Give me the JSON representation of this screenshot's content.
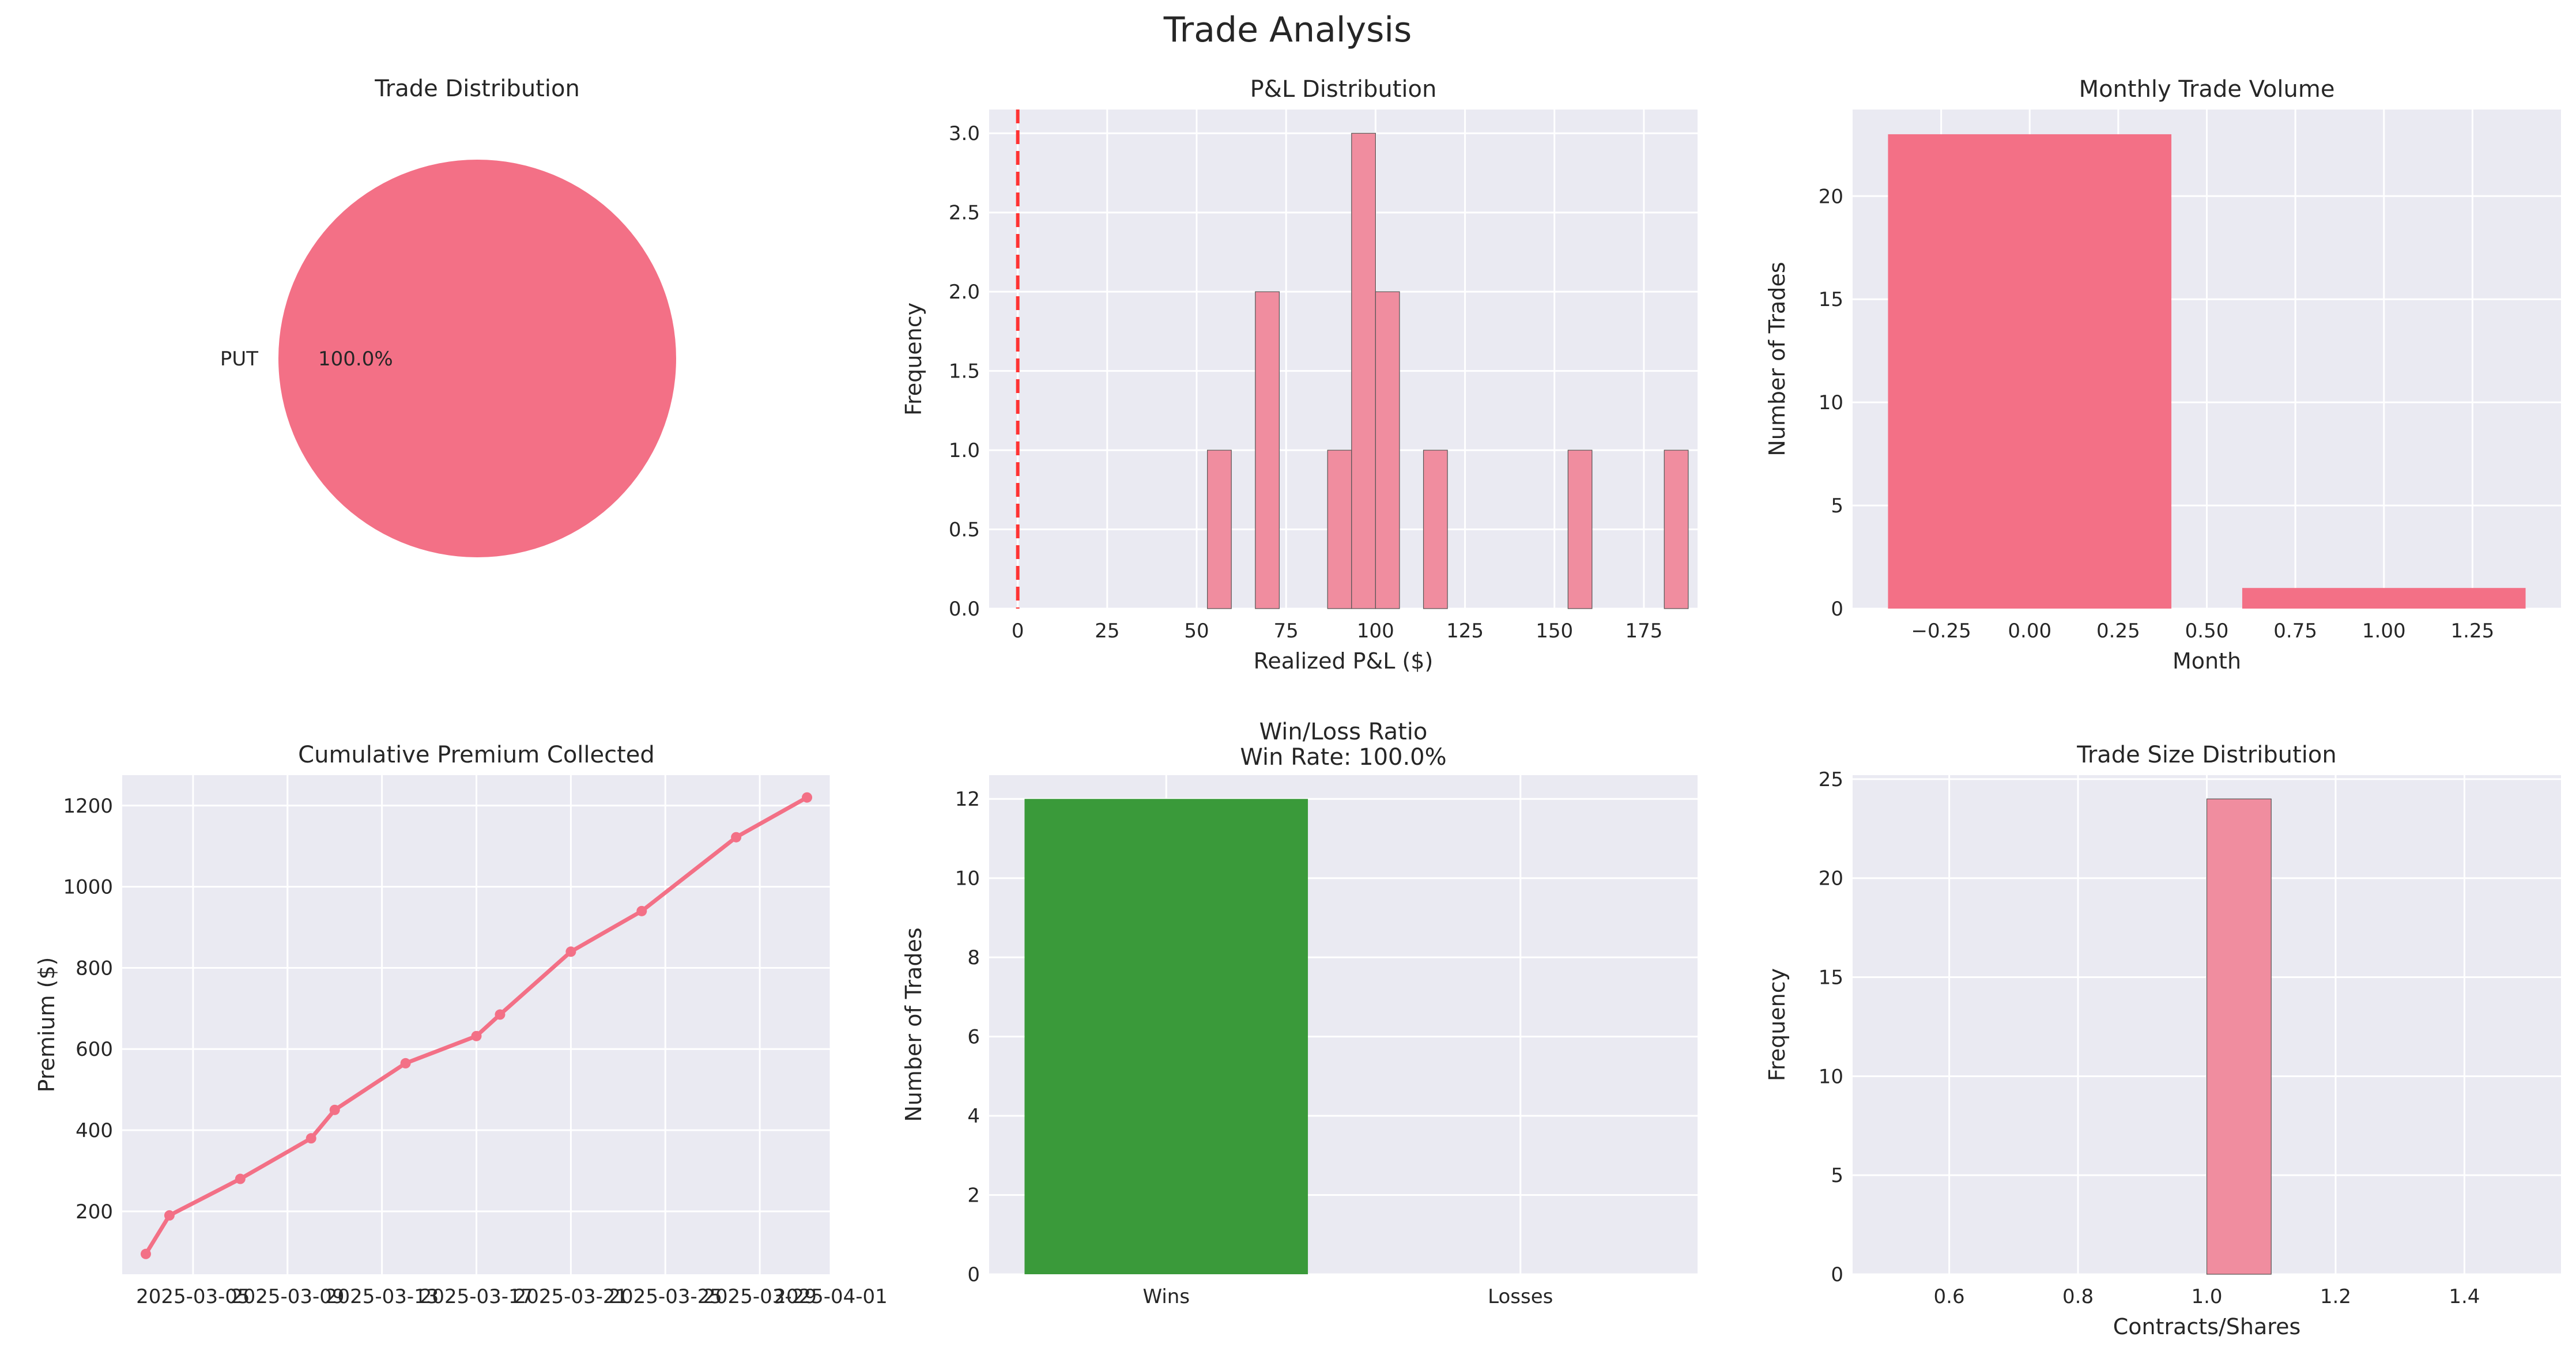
{
  "figure": {
    "title": "Trade Analysis"
  },
  "colors": {
    "accent": "#F37086",
    "hist": "#F08D9F",
    "win": "#3A9A3A",
    "zero_line": "#FF3333",
    "panel_bg": "#EAEAF2",
    "grid": "#FFFFFF"
  },
  "chart_data": [
    {
      "id": "trade_distribution",
      "type": "pie",
      "title": "Trade Distribution",
      "slices": [
        {
          "label": "PUT",
          "value": 100.0,
          "pct_label": "100.0%"
        }
      ]
    },
    {
      "id": "pnl_distribution",
      "type": "bar",
      "subtype": "histogram",
      "title": "P&L Distribution",
      "xlabel": "Realized P&L ($)",
      "ylabel": "Frequency",
      "xlim": [
        -8,
        190
      ],
      "ylim": [
        0,
        3.15
      ],
      "xticks": [
        0,
        25,
        50,
        75,
        100,
        125,
        150,
        175
      ],
      "yticks": [
        0.0,
        0.5,
        1.0,
        1.5,
        2.0,
        2.5,
        3.0
      ],
      "ytick_labels": [
        "0.0",
        "0.5",
        "1.0",
        "1.5",
        "2.0",
        "2.5",
        "3.0"
      ],
      "vline_x": 0,
      "bins": [
        {
          "x0": 53.0,
          "x1": 59.7,
          "count": 1
        },
        {
          "x0": 66.4,
          "x1": 73.1,
          "count": 2
        },
        {
          "x0": 86.6,
          "x1": 93.3,
          "count": 1
        },
        {
          "x0": 93.3,
          "x1": 100.0,
          "count": 3
        },
        {
          "x0": 100.0,
          "x1": 106.7,
          "count": 2
        },
        {
          "x0": 113.4,
          "x1": 120.1,
          "count": 1
        },
        {
          "x0": 153.8,
          "x1": 160.5,
          "count": 1
        },
        {
          "x0": 180.7,
          "x1": 187.4,
          "count": 1
        }
      ]
    },
    {
      "id": "monthly_volume",
      "type": "bar",
      "title": "Monthly Trade Volume",
      "xlabel": "Month",
      "ylabel": "Number of Trades",
      "xlim": [
        -0.5,
        1.5
      ],
      "ylim": [
        0,
        24.2
      ],
      "xticks": [
        -0.25,
        0.0,
        0.25,
        0.5,
        0.75,
        1.0,
        1.25
      ],
      "xtick_labels": [
        "−0.25",
        "0.00",
        "0.25",
        "0.50",
        "0.75",
        "1.00",
        "1.25"
      ],
      "yticks": [
        0,
        5,
        10,
        15,
        20
      ],
      "bars": [
        {
          "x": 0,
          "value": 23
        },
        {
          "x": 1,
          "value": 1
        }
      ]
    },
    {
      "id": "cumulative_premium",
      "type": "line",
      "title": "Cumulative Premium Collected",
      "xlabel": "",
      "ylabel": "Premium ($)",
      "ylim": [
        45,
        1275
      ],
      "yticks": [
        200,
        400,
        600,
        800,
        1000,
        1200
      ],
      "xlim_dates": [
        "2025-03-02",
        "2025-04-01"
      ],
      "xtick_labels": [
        "2025-03-05",
        "2025-03-09",
        "2025-03-13",
        "2025-03-17",
        "2025-03-21",
        "2025-03-25",
        "2025-03-29",
        "2025-04-01"
      ],
      "series": [
        {
          "points": [
            [
              "2025-03-03",
              95
            ],
            [
              "2025-03-04",
              190
            ],
            [
              "2025-03-07",
              280
            ],
            [
              "2025-03-10",
              380
            ],
            [
              "2025-03-11",
              450
            ],
            [
              "2025-03-14",
              565
            ],
            [
              "2025-03-17",
              632
            ],
            [
              "2025-03-18",
              685
            ],
            [
              "2025-03-21",
              840
            ],
            [
              "2025-03-24",
              940
            ],
            [
              "2025-03-28",
              1122
            ],
            [
              "2025-03-31",
              1220
            ]
          ]
        }
      ]
    },
    {
      "id": "win_loss",
      "type": "bar",
      "title": "Win/Loss Ratio",
      "subtitle": "Win Rate: 100.0%",
      "xlabel": "",
      "ylabel": "Number of Trades",
      "ylim": [
        0,
        12.6
      ],
      "yticks": [
        0,
        2,
        4,
        6,
        8,
        10,
        12
      ],
      "categories": [
        "Wins",
        "Losses"
      ],
      "values": [
        12,
        0
      ]
    },
    {
      "id": "trade_size",
      "type": "bar",
      "subtype": "histogram",
      "title": "Trade Size Distribution",
      "xlabel": "Contracts/Shares",
      "ylabel": "Frequency",
      "xlim": [
        0.45,
        1.55
      ],
      "ylim": [
        0,
        25.2
      ],
      "xticks": [
        0.6,
        0.8,
        1.0,
        1.2,
        1.4
      ],
      "xtick_labels": [
        "0.6",
        "0.8",
        "1.0",
        "1.2",
        "1.4"
      ],
      "yticks": [
        0,
        5,
        10,
        15,
        20,
        25
      ],
      "bins": [
        {
          "x0": 1.0,
          "x1": 1.1,
          "count": 24
        }
      ]
    }
  ]
}
